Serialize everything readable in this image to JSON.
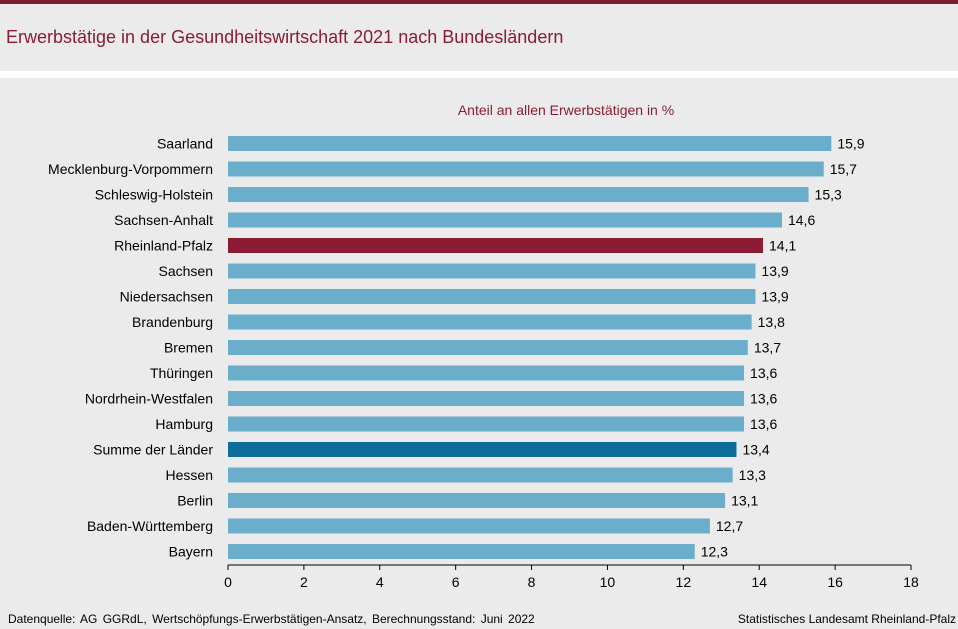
{
  "page": {
    "title": "Erwerbstätige in der Gesundheitswirtschaft 2021 nach Bundesländern",
    "source": "Datenquelle:  AG GGRdL, Wertschöpfungs-Erwerbstätigen-Ansatz,  Berechnungsstand:  Juni 2022",
    "publisher": "Statistisches Landesamt Rheinland-Pfalz"
  },
  "colors": {
    "default_bar": "#6aaecb",
    "highlight_bar": "#8b1c33",
    "total_bar": "#0d6e9e",
    "accent": "#8b1c33"
  },
  "chart_data": {
    "type": "bar",
    "orientation": "horizontal",
    "title": "Anteil an allen Erwerbstätigen in %",
    "xlabel": "",
    "ylabel": "",
    "xlim": [
      0,
      18
    ],
    "x_ticks": [
      0,
      2,
      4,
      6,
      8,
      10,
      12,
      14,
      16,
      18
    ],
    "grid": false,
    "decimal_separator": ",",
    "highlight": "Rheinland-Pfalz",
    "total": "Summe der Länder",
    "categories": [
      "Saarland",
      "Mecklenburg-Vorpommern",
      "Schleswig-Holstein",
      "Sachsen-Anhalt",
      "Rheinland-Pfalz",
      "Sachsen",
      "Niedersachsen",
      "Brandenburg",
      "Bremen",
      "Thüringen",
      "Nordrhein-Westfalen",
      "Hamburg",
      "Summe der Länder",
      "Hessen",
      "Berlin",
      "Baden-Württemberg",
      "Bayern"
    ],
    "values": [
      15.9,
      15.7,
      15.3,
      14.6,
      14.1,
      13.9,
      13.9,
      13.8,
      13.7,
      13.6,
      13.6,
      13.6,
      13.4,
      13.3,
      13.1,
      12.7,
      12.3
    ]
  }
}
